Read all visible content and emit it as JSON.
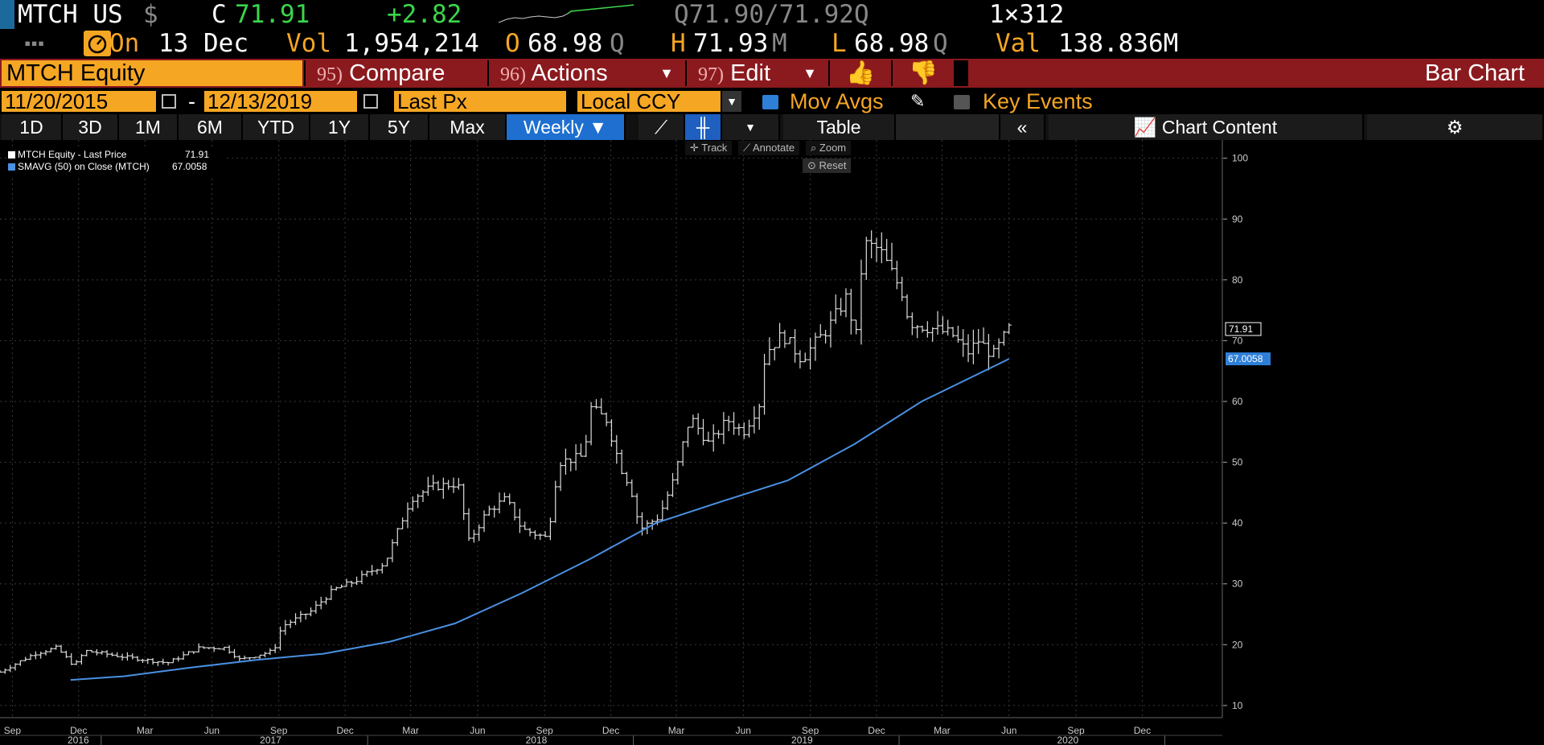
{
  "quote": {
    "ticker": "MTCH US",
    "currency_symbol": "$",
    "close_label": "C",
    "close": "71.91",
    "change": "+2.82",
    "bid_ask": "Q71.90/71.92Q",
    "size": "1×312",
    "date_label": "On",
    "date": "13 Dec",
    "vol_label": "Vol",
    "vol": "1,954,214",
    "open_label": "O",
    "open": "68.98",
    "open_suffix": "Q",
    "high_label": "H",
    "high": "71.93",
    "high_suffix": "M",
    "low_label": "L",
    "low": "68.98",
    "low_suffix": "Q",
    "val_label": "Val",
    "val": "138.836M"
  },
  "toolbar": {
    "security": "MTCH Equity",
    "compare_num": "95)",
    "compare": "Compare",
    "actions_num": "96)",
    "actions": "Actions",
    "edit_num": "97)",
    "edit": "Edit",
    "title": "Bar Chart"
  },
  "settings": {
    "start_date": "11/20/2015",
    "separator": "-",
    "end_date": "12/13/2019",
    "field": "Last Px",
    "currency": "Local CCY",
    "mov_avgs": "Mov Avgs",
    "key_events": "Key Events"
  },
  "periods": [
    "1D",
    "3D",
    "1M",
    "6M",
    "YTD",
    "1Y",
    "5Y",
    "Max"
  ],
  "frequency": "Weekly",
  "table_label": "Table",
  "chart_content_label": "Chart Content",
  "chart_tools": {
    "track": "Track",
    "annotate": "Annotate",
    "zoom": "Zoom",
    "reset": "Reset"
  },
  "colors": {
    "accent": "#f5a623",
    "toolbar": "#8b1a1e",
    "sma": "#4a90e2",
    "up": "#3bd64a",
    "active": "#1e6fd0"
  },
  "chart_data": {
    "type": "bar",
    "legend": [
      {
        "name": "MTCH Equity - Last Price",
        "value": "71.91",
        "color": "#ffffff"
      },
      {
        "name": "SMAVG (50) on Close (MTCH)",
        "value": "67.0058",
        "color": "#4a90e2"
      }
    ],
    "ylim": [
      8,
      103
    ],
    "yticks": [
      10,
      20,
      30,
      40,
      50,
      60,
      70,
      80,
      90,
      100
    ],
    "last_price_tag": "71.91",
    "sma_tag": "67.0058",
    "xlim": [
      "2015-08-15",
      "2020-03-20"
    ],
    "month_ticks": [
      {
        "label": "Sep",
        "date": "2015-09-01"
      },
      {
        "label": "Dec",
        "date": "2015-12-01"
      },
      {
        "label": "Mar",
        "date": "2016-03-01"
      },
      {
        "label": "Jun",
        "date": "2016-06-01"
      },
      {
        "label": "Sep",
        "date": "2016-09-01"
      },
      {
        "label": "Dec",
        "date": "2016-12-01"
      },
      {
        "label": "Mar",
        "date": "2017-03-01"
      },
      {
        "label": "Jun",
        "date": "2017-06-01"
      },
      {
        "label": "Sep",
        "date": "2017-09-01"
      },
      {
        "label": "Dec",
        "date": "2017-12-01"
      },
      {
        "label": "Mar",
        "date": "2018-03-01"
      },
      {
        "label": "Jun",
        "date": "2018-06-01"
      },
      {
        "label": "Sep",
        "date": "2018-09-01"
      },
      {
        "label": "Dec",
        "date": "2018-12-01"
      },
      {
        "label": "Mar",
        "date": "2019-03-01"
      },
      {
        "label": "Jun",
        "date": "2019-06-01"
      },
      {
        "label": "Sep",
        "date": "2019-09-01"
      },
      {
        "label": "Dec",
        "date": "2019-12-01"
      }
    ],
    "year_ticks": [
      {
        "label": "2016",
        "date": "2016-01-01"
      },
      {
        "label": "2017",
        "date": "2017-01-01"
      },
      {
        "label": "2018",
        "date": "2018-01-01"
      },
      {
        "label": "2019",
        "date": "2019-01-01"
      },
      {
        "label": "2020",
        "date": "2020-01-01"
      }
    ],
    "price_path": [
      [
        "2015-08-15",
        15.5
      ],
      [
        "2015-10-01",
        18.5
      ],
      [
        "2015-11-01",
        19.5
      ],
      [
        "2015-11-25",
        16.5
      ],
      [
        "2015-12-10",
        19.0
      ],
      [
        "2016-02-01",
        18.0
      ],
      [
        "2016-04-01",
        17.0
      ],
      [
        "2016-05-15",
        19.5
      ],
      [
        "2016-06-20",
        19.5
      ],
      [
        "2016-07-10",
        17.5
      ],
      [
        "2016-08-25",
        19.0
      ],
      [
        "2016-09-05",
        23.0
      ],
      [
        "2016-10-15",
        25.5
      ],
      [
        "2016-11-15",
        29.0
      ],
      [
        "2016-12-15",
        30.5
      ],
      [
        "2017-01-25",
        33.5
      ],
      [
        "2017-03-01",
        44.0
      ],
      [
        "2017-04-01",
        46.0
      ],
      [
        "2017-05-05",
        46.5
      ],
      [
        "2017-05-20",
        37.0
      ],
      [
        "2017-06-15",
        42.0
      ],
      [
        "2017-07-10",
        44.0
      ],
      [
        "2017-08-01",
        39.0
      ],
      [
        "2017-09-05",
        37.5
      ],
      [
        "2017-09-20",
        50.0
      ],
      [
        "2017-10-25",
        51.0
      ],
      [
        "2017-11-03",
        59.0
      ],
      [
        "2017-11-25",
        57.0
      ],
      [
        "2017-12-15",
        49.0
      ],
      [
        "2017-12-28",
        46.0
      ],
      [
        "2018-01-10",
        39.0
      ],
      [
        "2018-02-05",
        41.0
      ],
      [
        "2018-02-25",
        47.0
      ],
      [
        "2018-03-20",
        57.5
      ],
      [
        "2018-04-15",
        53.0
      ],
      [
        "2018-05-10",
        57.0
      ],
      [
        "2018-06-01",
        55.0
      ],
      [
        "2018-06-25",
        60.0
      ],
      [
        "2018-07-01",
        68.0
      ],
      [
        "2018-07-25",
        71.0
      ],
      [
        "2018-08-20",
        67.0
      ],
      [
        "2018-09-25",
        72.0
      ],
      [
        "2018-10-20",
        77.0
      ],
      [
        "2018-11-05",
        70.0
      ],
      [
        "2018-11-12",
        86.0
      ],
      [
        "2018-12-05",
        85.0
      ],
      [
        "2019-01-05",
        78.0
      ],
      [
        "2019-01-15",
        73.0
      ],
      [
        "2019-02-15",
        72.0
      ],
      [
        "2019-03-15",
        71.0
      ],
      [
        "2019-04-05",
        68.0
      ],
      [
        "2019-04-20",
        70.0
      ],
      [
        "2019-05-10",
        67.5
      ],
      [
        "2019-05-20",
        69.5
      ],
      [
        "2019-06-01",
        71.91
      ]
    ],
    "sma_path": [
      [
        "2015-11-20",
        14.2
      ],
      [
        "2016-02-01",
        14.8
      ],
      [
        "2016-05-01",
        16.2
      ],
      [
        "2016-08-01",
        17.5
      ],
      [
        "2016-11-01",
        18.5
      ],
      [
        "2017-02-01",
        20.5
      ],
      [
        "2017-05-01",
        23.5
      ],
      [
        "2017-08-01",
        28.5
      ],
      [
        "2017-11-01",
        34.0
      ],
      [
        "2018-02-01",
        40.0
      ],
      [
        "2018-05-01",
        43.5
      ],
      [
        "2018-08-01",
        47.0
      ],
      [
        "2018-11-01",
        53.0
      ],
      [
        "2019-02-01",
        60.0
      ],
      [
        "2019-06-01",
        67.0
      ]
    ]
  }
}
